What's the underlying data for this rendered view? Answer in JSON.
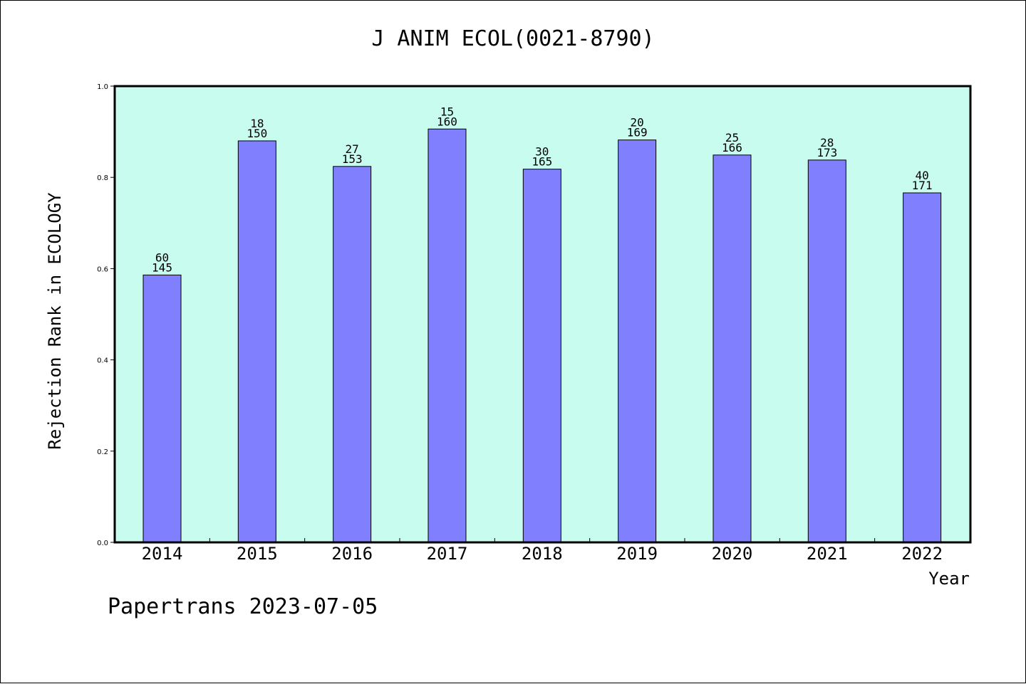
{
  "chart_data": {
    "type": "bar",
    "title": "J ANIM ECOL(0021-8790)",
    "xlabel": "Year",
    "ylabel": "Rejection Rank in ECOLOGY",
    "ylim": [
      0,
      1.0
    ],
    "yticks": [
      "0.0",
      "0.2",
      "0.4",
      "0.6",
      "0.8",
      "1.0"
    ],
    "categories": [
      "2014",
      "2015",
      "2016",
      "2017",
      "2018",
      "2019",
      "2020",
      "2021",
      "2022"
    ],
    "values": [
      0.586,
      0.88,
      0.824,
      0.906,
      0.818,
      0.882,
      0.849,
      0.838,
      0.766
    ],
    "label_top": [
      "60",
      "18",
      "27",
      "15",
      "30",
      "20",
      "25",
      "28",
      "40"
    ],
    "label_bottom": [
      "145",
      "150",
      "153",
      "160",
      "165",
      "169",
      "166",
      "173",
      "171"
    ],
    "grid": false,
    "colors": {
      "bar": "#8080ff",
      "plot_bg": "#c8fcee",
      "border": "#000000"
    }
  },
  "footer": "Papertrans 2023-07-05"
}
